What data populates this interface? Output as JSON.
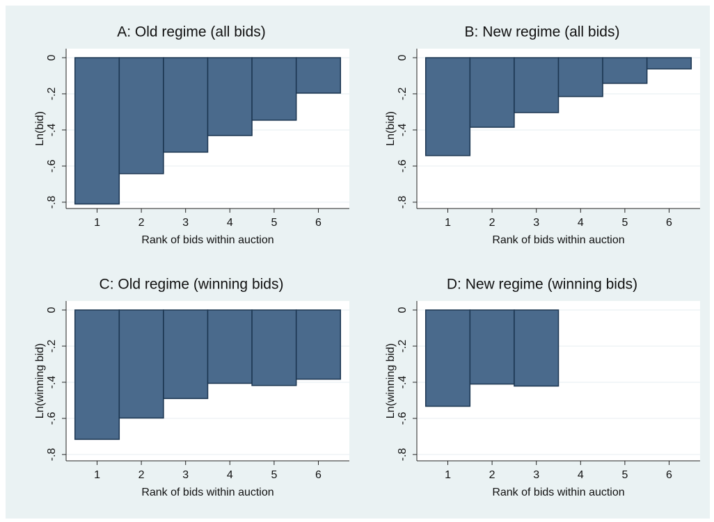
{
  "chart_data": [
    {
      "type": "bar",
      "title": "A: Old regime (all bids)",
      "xlabel": "Rank of bids within auction",
      "ylabel": "Ln(bid)",
      "x": [
        1,
        2,
        3,
        4,
        5,
        6
      ],
      "values": [
        -0.81,
        -0.642,
        -0.523,
        -0.431,
        -0.346,
        -0.196
      ],
      "xlim": [
        0.3,
        6.7
      ],
      "xticks": [
        1,
        2,
        3,
        4,
        5,
        6
      ],
      "ylim": [
        -0.835,
        0.05
      ],
      "yticks": [
        0,
        {
          "value": -0.2,
          "label": "-.2"
        },
        {
          "value": -0.4,
          "label": "-.4"
        },
        {
          "value": -0.6,
          "label": "-.6"
        },
        {
          "value": -0.8,
          "label": "-.8"
        }
      ],
      "color": "#4a6a8c",
      "grid": true
    },
    {
      "type": "bar",
      "title": "B: New regime (all bids)",
      "xlabel": "Rank of bids within auction",
      "ylabel": "Ln(bid)",
      "x": [
        1,
        2,
        3,
        4,
        5,
        6
      ],
      "values": [
        -0.542,
        -0.385,
        -0.304,
        -0.215,
        -0.142,
        -0.062
      ],
      "xlim": [
        0.3,
        6.7
      ],
      "xticks": [
        1,
        2,
        3,
        4,
        5,
        6
      ],
      "ylim": [
        -0.835,
        0.05
      ],
      "yticks": [
        0,
        {
          "value": -0.2,
          "label": "-.2"
        },
        {
          "value": -0.4,
          "label": "-.4"
        },
        {
          "value": -0.6,
          "label": "-.6"
        },
        {
          "value": -0.8,
          "label": "-.8"
        }
      ],
      "color": "#4a6a8c",
      "grid": true
    },
    {
      "type": "bar",
      "title": "C: Old regime (winning bids)",
      "xlabel": "Rank of bids within auction",
      "ylabel": "Ln(winning bid)",
      "x": [
        1,
        2,
        3,
        4,
        5,
        6
      ],
      "values": [
        -0.716,
        -0.598,
        -0.49,
        -0.406,
        -0.418,
        -0.383
      ],
      "xlim": [
        0.3,
        6.7
      ],
      "xticks": [
        1,
        2,
        3,
        4,
        5,
        6
      ],
      "ylim": [
        -0.835,
        0.05
      ],
      "yticks": [
        0,
        {
          "value": -0.2,
          "label": "-.2"
        },
        {
          "value": -0.4,
          "label": "-.4"
        },
        {
          "value": -0.6,
          "label": "-.6"
        },
        {
          "value": -0.8,
          "label": "-.8"
        }
      ],
      "color": "#4a6a8c",
      "grid": true
    },
    {
      "type": "bar",
      "title": "D: New regime (winning bids)",
      "xlabel": "Rank of bids within auction",
      "ylabel": "Ln(winning bid)",
      "x": [
        1,
        2,
        3
      ],
      "values": [
        -0.533,
        -0.41,
        -0.421
      ],
      "xlim": [
        0.3,
        6.7
      ],
      "xticks": [
        1,
        2,
        3,
        4,
        5,
        6
      ],
      "ylim": [
        -0.835,
        0.05
      ],
      "yticks": [
        0,
        {
          "value": -0.2,
          "label": "-.2"
        },
        {
          "value": -0.4,
          "label": "-.4"
        },
        {
          "value": -0.6,
          "label": "-.6"
        },
        {
          "value": -0.8,
          "label": "-.8"
        }
      ],
      "color": "#4a6a8c",
      "grid": true
    }
  ]
}
